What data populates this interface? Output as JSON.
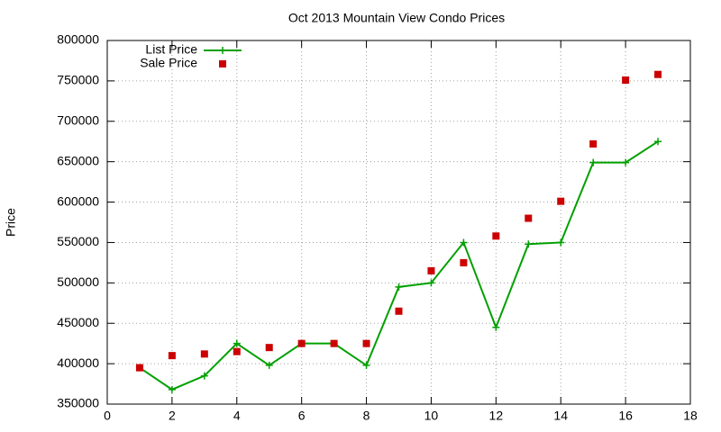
{
  "chart_data": {
    "type": "line",
    "title": "Oct 2013 Mountain View Condo Prices",
    "y_label": "Price",
    "x": [
      1,
      2,
      3,
      4,
      5,
      6,
      7,
      8,
      9,
      10,
      11,
      12,
      13,
      14,
      15,
      16,
      17
    ],
    "series": [
      {
        "name": "List Price",
        "color": "#00a000",
        "mode": "lines+markers",
        "values": [
          395000,
          368000,
          385000,
          425000,
          398000,
          425000,
          425000,
          398000,
          495000,
          500000,
          550000,
          445000,
          548000,
          550000,
          649000,
          649000,
          675000
        ]
      },
      {
        "name": "Sale Price",
        "color": "#cc0000",
        "mode": "markers",
        "values": [
          395000,
          410000,
          412000,
          415000,
          420000,
          425000,
          425000,
          425000,
          465000,
          515000,
          525000,
          558000,
          580000,
          601000,
          672000,
          751000,
          758000
        ]
      }
    ],
    "xlim": [
      0,
      18
    ],
    "xticks": [
      0,
      2,
      4,
      6,
      8,
      10,
      12,
      14,
      16,
      18
    ],
    "ylim": [
      350000,
      800000
    ],
    "yticks": [
      350000,
      400000,
      450000,
      500000,
      550000,
      600000,
      650000,
      700000,
      750000,
      800000
    ],
    "grid": true,
    "legend": "top-left"
  }
}
